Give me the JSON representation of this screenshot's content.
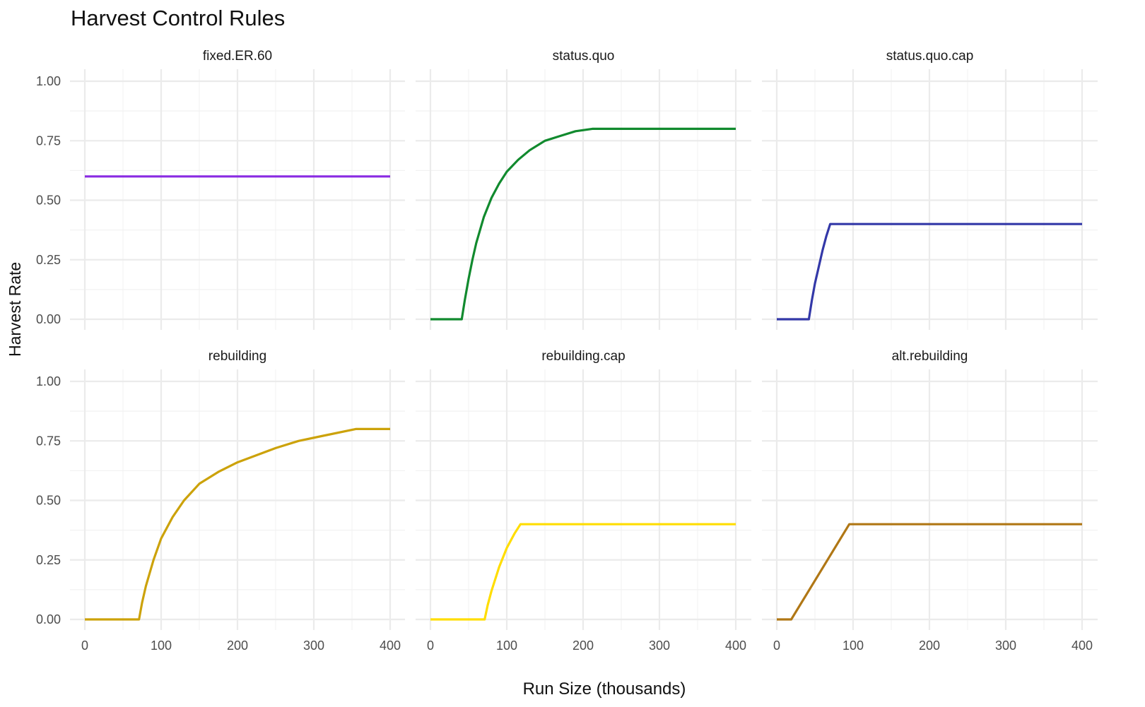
{
  "chart_data": {
    "type": "line",
    "title": "Harvest Control Rules",
    "xlabel": "Run Size (thousands)",
    "ylabel": "Harvest Rate",
    "xlim": [
      0,
      400
    ],
    "ylim": [
      0,
      1
    ],
    "x_ticks": [
      "0",
      "100",
      "200",
      "300",
      "400"
    ],
    "y_ticks": [
      "0.00",
      "0.25",
      "0.50",
      "0.75",
      "1.00"
    ],
    "grid": true,
    "panels": [
      {
        "name": "fixed.ER.60",
        "color": "#8a2be2",
        "x": [
          0,
          400
        ],
        "y": [
          0.6,
          0.6
        ]
      },
      {
        "name": "status.quo",
        "color": "#118a2e",
        "x": [
          0,
          41,
          45,
          50,
          55,
          60,
          70,
          80,
          90,
          100,
          115,
          130,
          150,
          170,
          190,
          212,
          300,
          400
        ],
        "y": [
          0,
          0,
          0.08,
          0.17,
          0.25,
          0.32,
          0.43,
          0.51,
          0.57,
          0.62,
          0.67,
          0.71,
          0.75,
          0.77,
          0.79,
          0.8,
          0.8,
          0.8
        ]
      },
      {
        "name": "status.quo.cap",
        "color": "#3338a8",
        "x": [
          0,
          42,
          46,
          50,
          55,
          60,
          65,
          70,
          200,
          400
        ],
        "y": [
          0,
          0,
          0.08,
          0.15,
          0.22,
          0.29,
          0.35,
          0.4,
          0.4,
          0.4
        ]
      },
      {
        "name": "rebuilding",
        "color": "#cca20a",
        "x": [
          0,
          71,
          75,
          80,
          90,
          100,
          115,
          130,
          150,
          175,
          200,
          225,
          250,
          280,
          310,
          355,
          400
        ],
        "y": [
          0,
          0,
          0.07,
          0.14,
          0.25,
          0.34,
          0.43,
          0.5,
          0.57,
          0.62,
          0.66,
          0.69,
          0.72,
          0.75,
          0.77,
          0.8,
          0.8
        ]
      },
      {
        "name": "rebuilding.cap",
        "color": "#ffdd00",
        "x": [
          0,
          71,
          75,
          80,
          90,
          100,
          110,
          118,
          200,
          400
        ],
        "y": [
          0,
          0,
          0.06,
          0.12,
          0.22,
          0.3,
          0.36,
          0.4,
          0.4,
          0.4
        ]
      },
      {
        "name": "alt.rebuilding",
        "color": "#b07715",
        "x": [
          0,
          19,
          95,
          200,
          400
        ],
        "y": [
          0,
          0,
          0.4,
          0.4,
          0.4
        ]
      }
    ]
  }
}
